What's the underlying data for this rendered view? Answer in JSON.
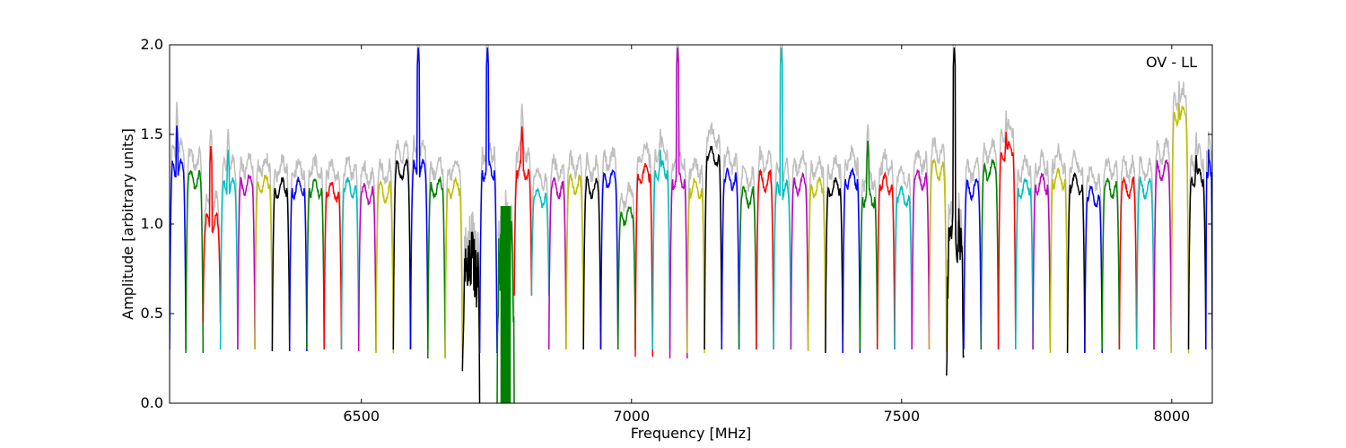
{
  "chart_data": {
    "type": "line",
    "annotation": "OV - LL",
    "xlabel": "Frequency [MHz]",
    "ylabel": "Amplitude [arbitrary units]",
    "xlim": [
      6145,
      8075
    ],
    "ylim": [
      0.0,
      2.0
    ],
    "x_ticks": [
      6500,
      7000,
      7500,
      8000
    ],
    "x_tick_labels": [
      "6500",
      "7000",
      "7500",
      "8000"
    ],
    "y_ticks": [
      0.0,
      0.5,
      1.0,
      1.5,
      2.0
    ],
    "y_tick_labels": [
      "0.0",
      "0.5",
      "1.0",
      "1.5",
      "2.0"
    ],
    "grid": false,
    "legend": "none",
    "background_series": {
      "name": "",
      "color": "#bfbfbf"
    },
    "color_cycle": [
      "#0000ff",
      "#008000",
      "#ff0000",
      "#00bfbf",
      "#bf00bf",
      "#bfbf00",
      "#000000"
    ],
    "channel_width_mhz": 32,
    "channels": [
      {
        "x_start": 6145,
        "x_end": 6175,
        "level": 1.3,
        "peak": 1.56,
        "dip": 0.3,
        "color": "#0000ff"
      },
      {
        "x_start": 6175,
        "x_end": 6207,
        "level": 1.25,
        "dip": 0.28,
        "color": "#008000"
      },
      {
        "x_start": 6207,
        "x_end": 6239,
        "level": 1.0,
        "peak": 1.44,
        "dip": 0.45,
        "color": "#ff0000"
      },
      {
        "x_start": 6239,
        "x_end": 6271,
        "level": 1.2,
        "peak": 1.42,
        "dip": 0.3,
        "color": "#00bfbf"
      },
      {
        "x_start": 6271,
        "x_end": 6303,
        "level": 1.22,
        "dip": 0.3,
        "color": "#bf00bf"
      },
      {
        "x_start": 6303,
        "x_end": 6335,
        "level": 1.22,
        "dip": 0.3,
        "color": "#bfbf00"
      },
      {
        "x_start": 6335,
        "x_end": 6367,
        "level": 1.2,
        "dip": 0.29,
        "color": "#000000"
      },
      {
        "x_start": 6367,
        "x_end": 6399,
        "level": 1.2,
        "dip": 0.29,
        "color": "#0000ff"
      },
      {
        "x_start": 6399,
        "x_end": 6431,
        "level": 1.2,
        "dip": 0.3,
        "color": "#008000"
      },
      {
        "x_start": 6431,
        "x_end": 6463,
        "level": 1.18,
        "dip": 0.3,
        "color": "#ff0000"
      },
      {
        "x_start": 6463,
        "x_end": 6495,
        "level": 1.2,
        "dip": 0.3,
        "color": "#00bfbf"
      },
      {
        "x_start": 6495,
        "x_end": 6527,
        "level": 1.17,
        "dip": 0.29,
        "color": "#bf00bf"
      },
      {
        "x_start": 6527,
        "x_end": 6559,
        "level": 1.18,
        "dip": 0.28,
        "color": "#bfbf00"
      },
      {
        "x_start": 6559,
        "x_end": 6591,
        "level": 1.3,
        "dip": 0.3,
        "color": "#000000"
      },
      {
        "x_start": 6591,
        "x_end": 6623,
        "level": 1.3,
        "peak": 1.99,
        "dip": 0.3,
        "color": "#0000ff"
      },
      {
        "x_start": 6623,
        "x_end": 6655,
        "level": 1.2,
        "dip": 0.25,
        "color": "#008000"
      },
      {
        "x_start": 6655,
        "x_end": 6687,
        "level": 1.2,
        "dip": 0.25,
        "color": "#bfbf00"
      },
      {
        "x_start": 6687,
        "x_end": 6719,
        "level": 0.75,
        "dip": 0.08,
        "color": "#000000"
      },
      {
        "x_start": 6719,
        "x_end": 6751,
        "level": 1.3,
        "peak": 1.99,
        "dip": 0.28,
        "color": "#0000ff"
      },
      {
        "x_start": 6751,
        "x_end": 6783,
        "level": 0.85,
        "dip": 0.0,
        "color": "#008000"
      },
      {
        "x_start": 6783,
        "x_end": 6815,
        "level": 1.3,
        "peak": 1.55,
        "dip": 0.6,
        "color": "#ff0000"
      },
      {
        "x_start": 6815,
        "x_end": 6847,
        "level": 1.15,
        "dip": 0.6,
        "color": "#00bfbf"
      },
      {
        "x_start": 6847,
        "x_end": 6879,
        "level": 1.2,
        "dip": 0.3,
        "color": "#bf00bf"
      },
      {
        "x_start": 6879,
        "x_end": 6911,
        "level": 1.22,
        "dip": 0.3,
        "color": "#bfbf00"
      },
      {
        "x_start": 6911,
        "x_end": 6943,
        "level": 1.2,
        "dip": 0.3,
        "color": "#000000"
      },
      {
        "x_start": 6943,
        "x_end": 6975,
        "level": 1.25,
        "dip": 0.3,
        "color": "#0000ff"
      },
      {
        "x_start": 6975,
        "x_end": 7007,
        "level": 1.05,
        "dip": 0.3,
        "color": "#008000"
      },
      {
        "x_start": 7007,
        "x_end": 7039,
        "level": 1.28,
        "dip": 0.26,
        "color": "#ff0000"
      },
      {
        "x_start": 7039,
        "x_end": 7071,
        "level": 1.3,
        "peak": 1.42,
        "dip": 0.3,
        "color": "#00bfbf"
      },
      {
        "x_start": 7071,
        "x_end": 7103,
        "level": 1.25,
        "peak": 1.99,
        "dip": 0.25,
        "color": "#bf00bf"
      },
      {
        "x_start": 7103,
        "x_end": 7135,
        "level": 1.2,
        "dip": 0.28,
        "color": "#bfbf00"
      },
      {
        "x_start": 7135,
        "x_end": 7167,
        "level": 1.38,
        "dip": 0.3,
        "color": "#000000"
      },
      {
        "x_start": 7167,
        "x_end": 7199,
        "level": 1.25,
        "dip": 0.3,
        "color": "#0000ff"
      },
      {
        "x_start": 7199,
        "x_end": 7231,
        "level": 1.15,
        "dip": 0.3,
        "color": "#008000"
      },
      {
        "x_start": 7231,
        "x_end": 7263,
        "level": 1.24,
        "dip": 0.3,
        "color": "#ff0000"
      },
      {
        "x_start": 7263,
        "x_end": 7295,
        "level": 1.18,
        "peak": 1.99,
        "dip": 0.3,
        "color": "#00bfbf"
      },
      {
        "x_start": 7295,
        "x_end": 7327,
        "level": 1.22,
        "dip": 0.3,
        "color": "#bf00bf"
      },
      {
        "x_start": 7327,
        "x_end": 7359,
        "level": 1.2,
        "dip": 0.29,
        "color": "#bfbf00"
      },
      {
        "x_start": 7359,
        "x_end": 7391,
        "level": 1.2,
        "dip": 0.28,
        "color": "#000000"
      },
      {
        "x_start": 7391,
        "x_end": 7423,
        "level": 1.25,
        "dip": 0.28,
        "color": "#0000ff"
      },
      {
        "x_start": 7423,
        "x_end": 7455,
        "level": 1.15,
        "peak": 1.47,
        "dip": 0.3,
        "color": "#008000"
      },
      {
        "x_start": 7455,
        "x_end": 7487,
        "level": 1.22,
        "dip": 0.3,
        "color": "#ff0000"
      },
      {
        "x_start": 7487,
        "x_end": 7519,
        "level": 1.15,
        "dip": 0.3,
        "color": "#00bfbf"
      },
      {
        "x_start": 7519,
        "x_end": 7551,
        "level": 1.25,
        "dip": 0.3,
        "color": "#bf00bf"
      },
      {
        "x_start": 7551,
        "x_end": 7583,
        "level": 1.3,
        "dip": 0.3,
        "color": "#bfbf00"
      },
      {
        "x_start": 7583,
        "x_end": 7615,
        "level": 0.9,
        "peak": 1.99,
        "dip": 0.12,
        "color": "#000000"
      },
      {
        "x_start": 7615,
        "x_end": 7647,
        "level": 1.2,
        "dip": 0.3,
        "color": "#0000ff"
      },
      {
        "x_start": 7647,
        "x_end": 7679,
        "level": 1.3,
        "dip": 0.3,
        "color": "#008000"
      },
      {
        "x_start": 7679,
        "x_end": 7711,
        "level": 1.4,
        "peak": 1.52,
        "dip": 0.3,
        "color": "#ff0000"
      },
      {
        "x_start": 7711,
        "x_end": 7743,
        "level": 1.2,
        "dip": 0.3,
        "color": "#00bfbf"
      },
      {
        "x_start": 7743,
        "x_end": 7775,
        "level": 1.22,
        "dip": 0.3,
        "color": "#bf00bf"
      },
      {
        "x_start": 7775,
        "x_end": 7807,
        "level": 1.25,
        "dip": 0.28,
        "color": "#bfbf00"
      },
      {
        "x_start": 7807,
        "x_end": 7839,
        "level": 1.22,
        "dip": 0.28,
        "color": "#000000"
      },
      {
        "x_start": 7839,
        "x_end": 7871,
        "level": 1.15,
        "dip": 0.28,
        "color": "#0000ff"
      },
      {
        "x_start": 7871,
        "x_end": 7903,
        "level": 1.2,
        "dip": 0.3,
        "color": "#008000"
      },
      {
        "x_start": 7903,
        "x_end": 7935,
        "level": 1.2,
        "dip": 0.3,
        "color": "#ff0000"
      },
      {
        "x_start": 7935,
        "x_end": 7967,
        "level": 1.2,
        "dip": 0.3,
        "color": "#00bfbf"
      },
      {
        "x_start": 7967,
        "x_end": 7999,
        "level": 1.3,
        "dip": 0.3,
        "color": "#bf00bf"
      },
      {
        "x_start": 7999,
        "x_end": 8031,
        "level": 1.6,
        "peak": 1.68,
        "dip": 0.28,
        "color": "#bfbf00"
      },
      {
        "x_start": 8031,
        "x_end": 8063,
        "level": 1.25,
        "peak": 1.39,
        "dip": 0.3,
        "color": "#000000"
      },
      {
        "x_start": 8063,
        "x_end": 8075,
        "level": 1.3,
        "peak": 1.46,
        "dip": 0.3,
        "color": "#0000ff"
      }
    ]
  }
}
